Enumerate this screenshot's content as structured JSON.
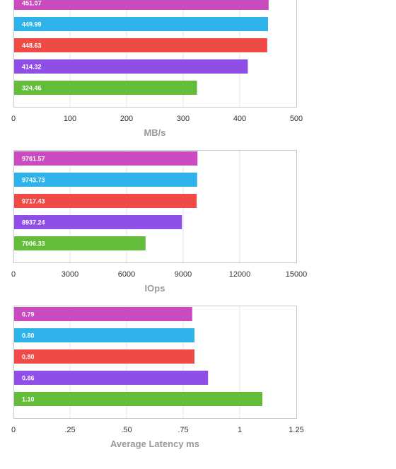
{
  "chart_data": [
    {
      "type": "bar",
      "orientation": "horizontal",
      "values": [
        451.07,
        449.99,
        448.63,
        414.32,
        324.46
      ],
      "value_labels": [
        "451.07",
        "449.99",
        "448.63",
        "414.32",
        "324.46"
      ],
      "colors": [
        "#c94bbf",
        "#2db3ea",
        "#ef4a45",
        "#8f4fe6",
        "#63bd3a"
      ],
      "xlim": [
        0,
        500
      ],
      "xticks": [
        "0",
        "100",
        "200",
        "300",
        "400",
        "500"
      ],
      "xlabel": "MB/s",
      "grid": true
    },
    {
      "type": "bar",
      "orientation": "horizontal",
      "values": [
        9761.57,
        9743.73,
        9717.43,
        8937.24,
        7006.33
      ],
      "value_labels": [
        "9761.57",
        "9743.73",
        "9717.43",
        "8937.24",
        "7006.33"
      ],
      "colors": [
        "#c94bbf",
        "#2db3ea",
        "#ef4a45",
        "#8f4fe6",
        "#63bd3a"
      ],
      "xlim": [
        0,
        15000
      ],
      "xticks": [
        "0",
        "3000",
        "6000",
        "9000",
        "12000",
        "15000"
      ],
      "xlabel": "IOps",
      "grid": true
    },
    {
      "type": "bar",
      "orientation": "horizontal",
      "values": [
        0.79,
        0.8,
        0.8,
        0.86,
        1.1
      ],
      "value_labels": [
        "0.79",
        "0.80",
        "0.80",
        "0.86",
        "1.10"
      ],
      "colors": [
        "#c94bbf",
        "#2db3ea",
        "#ef4a45",
        "#8f4fe6",
        "#63bd3a"
      ],
      "xlim": [
        0,
        1.25
      ],
      "xticks": [
        "0",
        ".25",
        ".50",
        ".75",
        "1",
        "1.25"
      ],
      "xlabel": "Average Latency ms",
      "grid": true
    }
  ]
}
